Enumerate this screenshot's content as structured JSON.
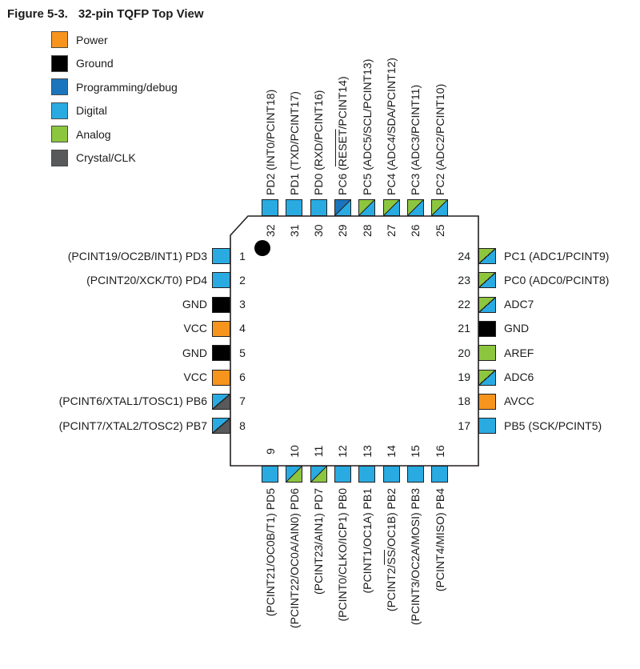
{
  "figure": {
    "label": "Figure 5-3.",
    "title": "32-pin TQFP Top View"
  },
  "legend": [
    {
      "key": "power",
      "label": "Power",
      "color": "#F7941E"
    },
    {
      "key": "ground",
      "label": "Ground",
      "color": "#000000"
    },
    {
      "key": "programming-debug",
      "label": "Programming/debug",
      "color": "#1B75BC"
    },
    {
      "key": "digital",
      "label": "Digital",
      "color": "#29ABE2"
    },
    {
      "key": "analog",
      "label": "Analog",
      "color": "#8CC63F"
    },
    {
      "key": "crystal-clk",
      "label": "Crystal/CLK",
      "color": "#58595B"
    }
  ],
  "package": {
    "outline_color": "#231F20",
    "body_fill": "#FFFFFF",
    "pin1_marker": "dot"
  },
  "pins": {
    "top": [
      {
        "num": "32",
        "label": "PD2 (INT0/PCINT18)",
        "type": "digital"
      },
      {
        "num": "31",
        "label": "PD1 (TXD/PCINT17)",
        "type": "digital"
      },
      {
        "num": "30",
        "label": "PD0 (RXD/PCINT16)",
        "type": "digital"
      },
      {
        "num": "29",
        "label": "PC6 (RESET/PCINT14)",
        "type": [
          "programming-debug",
          "digital"
        ],
        "overline": "RESET"
      },
      {
        "num": "28",
        "label": "PC5 (ADC5/SCL/PCINT13)",
        "type": [
          "analog",
          "digital"
        ]
      },
      {
        "num": "27",
        "label": "PC4 (ADC4/SDA/PCINT12)",
        "type": [
          "analog",
          "digital"
        ]
      },
      {
        "num": "26",
        "label": "PC3 (ADC3/PCINT11)",
        "type": [
          "analog",
          "digital"
        ]
      },
      {
        "num": "25",
        "label": "PC2 (ADC2/PCINT10)",
        "type": [
          "analog",
          "digital"
        ]
      }
    ],
    "left": [
      {
        "num": "1",
        "label": "(PCINT19/OC2B/INT1) PD3",
        "type": "digital"
      },
      {
        "num": "2",
        "label": "(PCINT20/XCK/T0) PD4",
        "type": "digital"
      },
      {
        "num": "3",
        "label": "GND",
        "type": "ground"
      },
      {
        "num": "4",
        "label": "VCC",
        "type": "power"
      },
      {
        "num": "5",
        "label": "GND",
        "type": "ground"
      },
      {
        "num": "6",
        "label": "VCC",
        "type": "power"
      },
      {
        "num": "7",
        "label": "(PCINT6/XTAL1/TOSC1) PB6",
        "type": [
          "digital",
          "crystal-clk"
        ]
      },
      {
        "num": "8",
        "label": "(PCINT7/XTAL2/TOSC2) PB7",
        "type": [
          "digital",
          "crystal-clk"
        ]
      }
    ],
    "right": [
      {
        "num": "24",
        "label": "PC1 (ADC1/PCINT9)",
        "type": [
          "analog",
          "digital"
        ]
      },
      {
        "num": "23",
        "label": "PC0 (ADC0/PCINT8)",
        "type": [
          "analog",
          "digital"
        ]
      },
      {
        "num": "22",
        "label": "ADC7",
        "type": [
          "analog",
          "digital"
        ]
      },
      {
        "num": "21",
        "label": "GND",
        "type": "ground"
      },
      {
        "num": "20",
        "label": "AREF",
        "type": "analog"
      },
      {
        "num": "19",
        "label": "ADC6",
        "type": [
          "analog",
          "digital"
        ]
      },
      {
        "num": "18",
        "label": "AVCC",
        "type": "power"
      },
      {
        "num": "17",
        "label": "PB5 (SCK/PCINT5)",
        "type": "digital"
      }
    ],
    "bottom": [
      {
        "num": "9",
        "label": "(PCINT21/OC0B/T1) PD5",
        "type": "digital"
      },
      {
        "num": "10",
        "label": "(PCINT22/OC0A/AIN0) PD6",
        "type": [
          "digital",
          "analog"
        ]
      },
      {
        "num": "11",
        "label": "(PCINT23/AIN1) PD7",
        "type": [
          "digital",
          "analog"
        ]
      },
      {
        "num": "12",
        "label": "(PCINT0/CLKO/ICP1) PB0",
        "type": "digital"
      },
      {
        "num": "13",
        "label": "(PCINT1/OC1A) PB1",
        "type": "digital"
      },
      {
        "num": "14",
        "label": "(PCINT2/SS/OC1B) PB2",
        "type": "digital",
        "overline": "SS"
      },
      {
        "num": "15",
        "label": "(PCINT3/OC2A/MOSI) PB3",
        "type": "digital"
      },
      {
        "num": "16",
        "label": "(PCINT4/MISO) PB4",
        "type": "digital"
      }
    ]
  }
}
